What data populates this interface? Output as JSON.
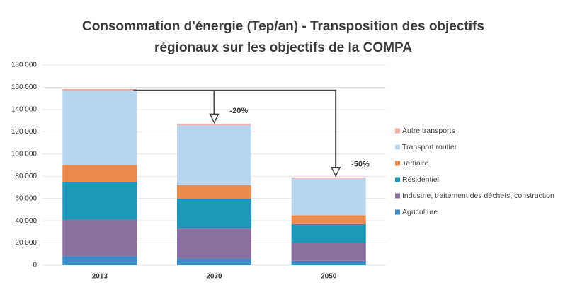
{
  "chart_data": {
    "type": "stacked_bar",
    "title": [
      "Consommation d'énergie (Tep/an) - Transposition des objectifs",
      "régionaux sur les objectifs de la COMPA"
    ],
    "categories": [
      "2013",
      "2030",
      "2050"
    ],
    "series": [
      {
        "name": "Agriculture",
        "color": "#3a8cc4",
        "values": [
          8000,
          6000,
          4000
        ]
      },
      {
        "name": "Industrie, traitement des déchets, construction",
        "color": "#8b6f9e",
        "values": [
          33000,
          27000,
          16000
        ]
      },
      {
        "name": "Résidentiel",
        "color": "#1f98b8",
        "values": [
          34000,
          27000,
          17000
        ]
      },
      {
        "name": "Tertiaire",
        "color": "#ea8a4f",
        "values": [
          15000,
          12000,
          8000
        ]
      },
      {
        "name": "Transport routier",
        "color": "#b9d5ee",
        "values": [
          67000,
          54000,
          33000
        ]
      },
      {
        "name": "Autre transports",
        "color": "#f2a9a9",
        "values": [
          1500,
          1000,
          1000
        ]
      }
    ],
    "annotations": [
      "-20%",
      "-50%"
    ],
    "ylim": [
      0,
      180000
    ],
    "yticks": [
      0,
      {
        "value": 20000,
        "label": "20 000"
      },
      {
        "value": 40000,
        "label": "40 000"
      },
      {
        "value": 60000,
        "label": "60 000"
      },
      {
        "value": 80000,
        "label": "80 000"
      },
      {
        "value": 100000,
        "label": "100 000"
      },
      {
        "value": 120000,
        "label": "120 000"
      },
      {
        "value": 140000,
        "label": "140 000"
      },
      {
        "value": 160000,
        "label": "160 000"
      },
      {
        "value": 180000,
        "label": "180 000"
      }
    ],
    "grid": true,
    "legend": "right"
  }
}
